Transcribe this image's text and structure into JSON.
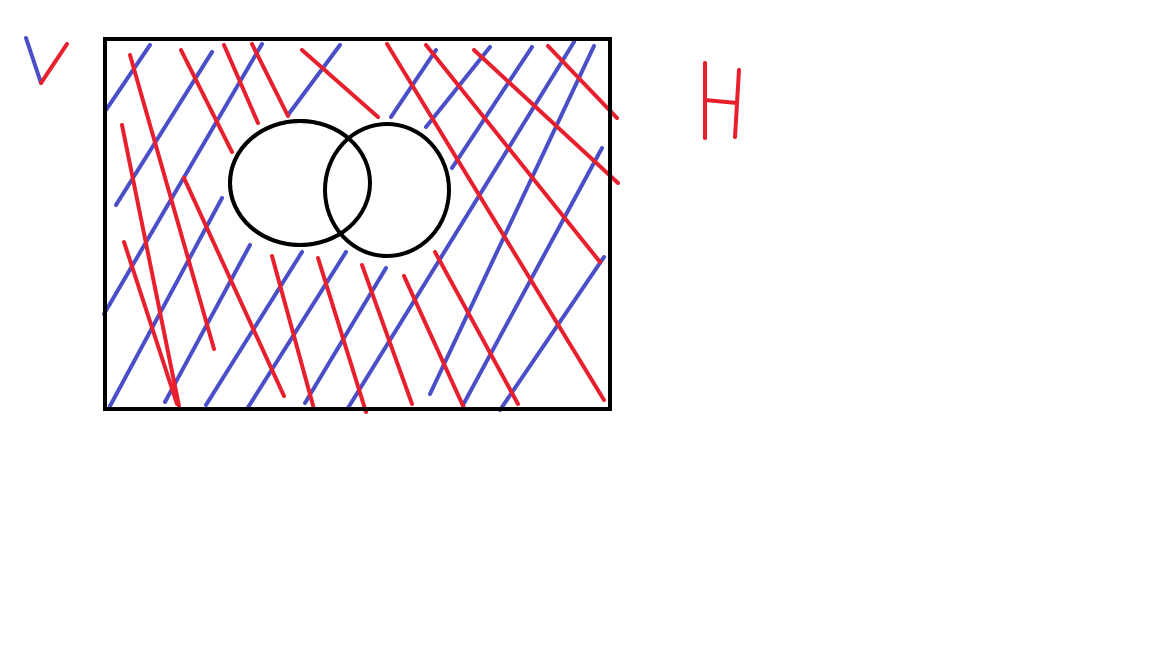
{
  "colors": {
    "background": "#ffffff",
    "outline": "#000000",
    "blue_hatch": "#4a4fc8",
    "red_hatch": "#e8202e"
  },
  "labels": {
    "v_label": "V",
    "h_label": "H"
  },
  "diagram": {
    "description_shapes": [
      "universal-set-rectangle",
      "left-circle",
      "right-circle"
    ],
    "hatching": [
      "blue-hatch",
      "red-hatch"
    ]
  }
}
